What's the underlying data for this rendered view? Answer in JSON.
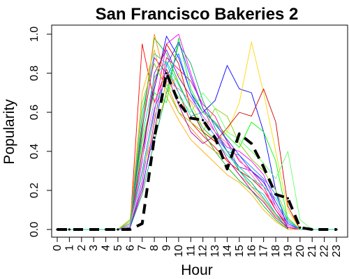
{
  "chart_data": {
    "type": "line",
    "title": "San Francisco Bakeries 2",
    "xlabel": "Hour",
    "ylabel": "Popularity",
    "xlim": [
      0,
      23
    ],
    "ylim": [
      0,
      1
    ],
    "x_ticks": [
      "0",
      "1",
      "2",
      "3",
      "4",
      "5",
      "6",
      "7",
      "8",
      "9",
      "10",
      "11",
      "12",
      "13",
      "14",
      "15",
      "16",
      "17",
      "18",
      "19",
      "20",
      "21",
      "22",
      "23"
    ],
    "y_ticks": [
      "0.0",
      "0.2",
      "0.4",
      "0.6",
      "0.8",
      "1.0"
    ],
    "grid": false,
    "legend": "none",
    "x": [
      0,
      1,
      2,
      3,
      4,
      5,
      6,
      7,
      8,
      9,
      10,
      11,
      12,
      13,
      14,
      15,
      16,
      17,
      18,
      19,
      20,
      21,
      22,
      23
    ],
    "series": [
      {
        "color": "#000000",
        "dashed": true,
        "bold": true,
        "values": [
          0,
          0,
          0,
          0,
          0,
          0,
          0,
          0.03,
          0.47,
          0.8,
          0.65,
          0.57,
          0.56,
          0.47,
          0.31,
          0.49,
          0.44,
          0.32,
          0.18,
          0.16,
          0.01,
          0,
          0,
          0
        ]
      },
      {
        "color": "#ff0000",
        "values": [
          0,
          0,
          0,
          0,
          0,
          0,
          0.02,
          0.95,
          0.65,
          0.82,
          0.7,
          0.55,
          0.48,
          0.42,
          0.35,
          0.3,
          0.26,
          0.2,
          0.1,
          0.02,
          0,
          0,
          0,
          0
        ]
      },
      {
        "color": "#00bb00",
        "values": [
          0,
          0,
          0,
          0,
          0,
          0,
          0.05,
          0.55,
          0.98,
          0.9,
          0.75,
          0.62,
          0.5,
          0.4,
          0.32,
          0.25,
          0.2,
          0.12,
          0.05,
          0,
          0,
          0,
          0,
          0
        ]
      },
      {
        "color": "#0000ff",
        "values": [
          0,
          0,
          0,
          0,
          0,
          0,
          0.03,
          0.4,
          0.72,
          0.99,
          0.88,
          0.7,
          0.6,
          0.66,
          0.84,
          0.72,
          0.7,
          0.5,
          0.2,
          0,
          0,
          0,
          0,
          0
        ]
      },
      {
        "color": "#ff00ff",
        "values": [
          0,
          0,
          0,
          0,
          0,
          0,
          0.01,
          0.25,
          0.6,
          0.95,
          1.0,
          0.8,
          0.62,
          0.5,
          0.42,
          0.4,
          0.35,
          0.28,
          0.14,
          0.03,
          0,
          0,
          0,
          0
        ]
      },
      {
        "color": "#ffd700",
        "values": [
          0,
          0,
          0,
          0,
          0,
          0,
          0.02,
          0.3,
          0.5,
          0.7,
          0.8,
          0.65,
          0.52,
          0.45,
          0.5,
          0.65,
          0.96,
          0.7,
          0.4,
          0.1,
          0,
          0,
          0,
          0
        ]
      },
      {
        "color": "#00cccc",
        "values": [
          0,
          0,
          0,
          0,
          0,
          0,
          0.04,
          0.6,
          0.9,
          0.85,
          0.7,
          0.58,
          0.6,
          0.55,
          0.45,
          0.3,
          0.22,
          0.18,
          0.08,
          0.02,
          0,
          0,
          0,
          0
        ]
      },
      {
        "color": "#ff8800",
        "values": [
          0,
          0,
          0,
          0,
          0,
          0,
          0.02,
          0.5,
          1.0,
          0.75,
          0.6,
          0.52,
          0.45,
          0.4,
          0.36,
          0.28,
          0.22,
          0.15,
          0.07,
          0.01,
          0,
          0,
          0,
          0
        ]
      },
      {
        "color": "#8800ff",
        "values": [
          0,
          0,
          0,
          0,
          0,
          0,
          0.01,
          0.35,
          0.8,
          0.92,
          0.78,
          0.68,
          0.58,
          0.5,
          0.4,
          0.32,
          0.3,
          0.25,
          0.12,
          0.02,
          0,
          0,
          0,
          0
        ]
      },
      {
        "color": "#00ff00",
        "values": [
          0,
          0,
          0,
          0,
          0,
          0,
          0.03,
          0.45,
          0.7,
          0.65,
          0.98,
          0.72,
          0.6,
          0.55,
          0.48,
          0.42,
          0.55,
          0.5,
          0.35,
          0.05,
          0,
          0,
          0,
          0
        ]
      },
      {
        "color": "#ff0088",
        "values": [
          0,
          0,
          0,
          0,
          0,
          0,
          0.01,
          0.2,
          0.55,
          0.88,
          0.82,
          0.76,
          0.64,
          0.58,
          0.45,
          0.35,
          0.3,
          0.22,
          0.1,
          0.01,
          0,
          0,
          0,
          0
        ]
      },
      {
        "color": "#0088ff",
        "values": [
          0,
          0,
          0,
          0,
          0,
          0,
          0.02,
          0.3,
          0.62,
          0.78,
          0.9,
          0.7,
          0.56,
          0.48,
          0.4,
          0.38,
          0.32,
          0.26,
          0.18,
          0.04,
          0,
          0,
          0,
          0
        ]
      },
      {
        "color": "#88cc00",
        "values": [
          0,
          0,
          0,
          0,
          0,
          0,
          0.05,
          0.65,
          0.85,
          0.72,
          0.6,
          0.55,
          0.5,
          0.62,
          0.58,
          0.44,
          0.36,
          0.3,
          0.2,
          0.06,
          0,
          0,
          0,
          0
        ]
      },
      {
        "color": "#cc0000",
        "values": [
          0,
          0,
          0,
          0,
          0,
          0,
          0.02,
          0.4,
          0.75,
          0.95,
          0.85,
          0.62,
          0.5,
          0.45,
          0.52,
          0.6,
          0.58,
          0.72,
          0.55,
          0.12,
          0,
          0,
          0,
          0
        ]
      },
      {
        "color": "#00aa66",
        "values": [
          0,
          0,
          0,
          0,
          0,
          0,
          0.01,
          0.18,
          0.45,
          0.7,
          0.95,
          0.85,
          0.66,
          0.52,
          0.4,
          0.3,
          0.24,
          0.16,
          0.08,
          0,
          0,
          0,
          0,
          0
        ]
      },
      {
        "color": "#aa00aa",
        "values": [
          0,
          0,
          0,
          0,
          0,
          0,
          0.03,
          0.52,
          0.88,
          0.8,
          0.64,
          0.5,
          0.44,
          0.48,
          0.36,
          0.28,
          0.2,
          0.14,
          0.06,
          0.01,
          0,
          0,
          0,
          0
        ]
      },
      {
        "color": "#66ff66",
        "values": [
          0,
          0,
          0,
          0,
          0,
          0,
          0.02,
          0.28,
          0.58,
          0.74,
          0.68,
          0.6,
          0.7,
          0.62,
          0.5,
          0.46,
          0.4,
          0.34,
          0.26,
          0.4,
          0.05,
          0,
          0,
          0
        ]
      },
      {
        "color": "#ffaa00",
        "values": [
          0,
          0,
          0,
          0,
          0,
          0,
          0.04,
          0.7,
          0.92,
          0.68,
          0.56,
          0.46,
          0.4,
          0.34,
          0.28,
          0.24,
          0.18,
          0.1,
          0.04,
          0,
          0,
          0,
          0,
          0
        ]
      },
      {
        "color": "#3333ff",
        "values": [
          0,
          0,
          0,
          0,
          0,
          0,
          0.01,
          0.22,
          0.5,
          0.84,
          0.96,
          0.78,
          0.62,
          0.54,
          0.46,
          0.38,
          0.3,
          0.24,
          0.14,
          0.03,
          0,
          0,
          0,
          0
        ]
      },
      {
        "color": "#ff66cc",
        "values": [
          0,
          0,
          0,
          0,
          0,
          0,
          0.02,
          0.36,
          0.66,
          0.76,
          0.72,
          0.66,
          0.58,
          0.5,
          0.44,
          0.36,
          0.28,
          0.2,
          0.12,
          0.02,
          0,
          0,
          0,
          0
        ]
      },
      {
        "color": "#00dd99",
        "values": [
          0,
          0,
          0,
          0,
          0,
          0,
          0.03,
          0.48,
          0.78,
          0.86,
          0.74,
          0.62,
          0.52,
          0.46,
          0.38,
          0.32,
          0.26,
          0.22,
          0.16,
          0.05,
          0,
          0,
          0,
          0
        ]
      }
    ]
  }
}
